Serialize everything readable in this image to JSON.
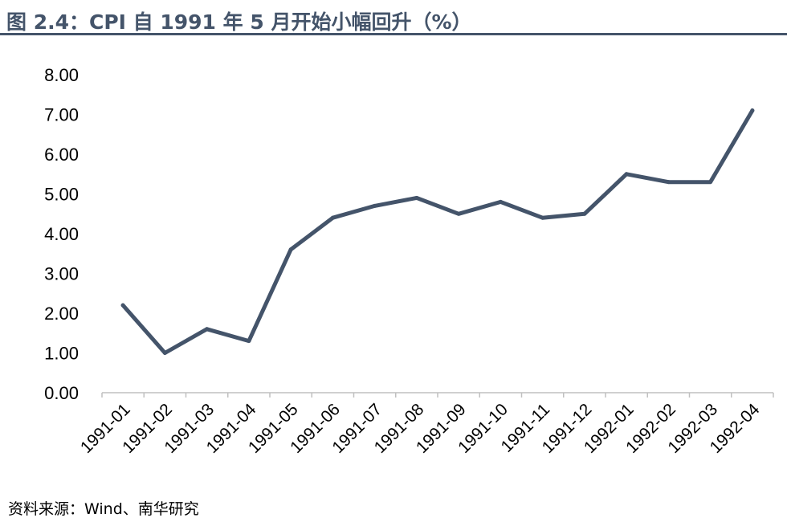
{
  "header": {
    "title": "图 2.4：CPI 自 1991 年 5 月开始小幅回升（%）"
  },
  "footer": {
    "source": "资料来源：Wind、南华研究"
  },
  "colors": {
    "line": "#44546a",
    "title": "#44546a",
    "axis": "#c0c0c0"
  },
  "chart_data": {
    "type": "line",
    "title": "图 2.4：CPI 自 1991 年 5 月开始小幅回升（%）",
    "xlabel": "",
    "ylabel": "",
    "ylim": [
      0,
      8
    ],
    "yticks": [
      "0.00",
      "1.00",
      "2.00",
      "3.00",
      "4.00",
      "5.00",
      "6.00",
      "7.00",
      "8.00"
    ],
    "grid": false,
    "legend": "none",
    "categories": [
      "1991-01",
      "1991-02",
      "1991-03",
      "1991-04",
      "1991-05",
      "1991-06",
      "1991-07",
      "1991-08",
      "1991-09",
      "1991-10",
      "1991-11",
      "1991-12",
      "1992-01",
      "1992-02",
      "1992-03",
      "1992-04"
    ],
    "series": [
      {
        "values": [
          2.2,
          1.0,
          1.6,
          1.3,
          3.6,
          4.4,
          4.7,
          4.9,
          4.5,
          4.8,
          4.4,
          4.5,
          5.5,
          5.3,
          5.3,
          7.1
        ]
      }
    ]
  }
}
